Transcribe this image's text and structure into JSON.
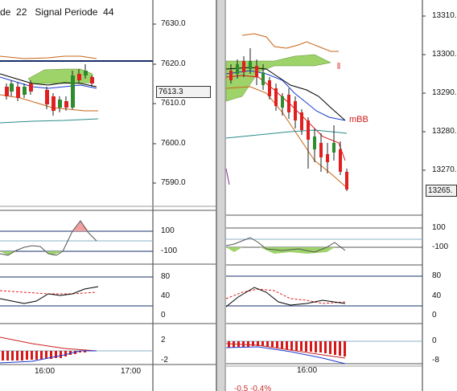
{
  "left_chart": {
    "header": {
      "period_label": "de",
      "period_value": "22",
      "signal_label": "Signal Periode",
      "signal_value": "44"
    },
    "price_axis": [
      "7630.0",
      "7620.0",
      "7610.0",
      "7600.0",
      "7590.0"
    ],
    "current_price": "7613.3",
    "cci_axis": [
      "100",
      "-100"
    ],
    "stoch_axis": [
      "80",
      "40",
      "0"
    ],
    "macd_axis": [
      "2",
      "-2"
    ],
    "time_axis": [
      "16:00",
      "17:00"
    ]
  },
  "right_chart": {
    "price_axis": [
      "13310.",
      "13300.",
      "13290.",
      "13280.",
      "13270."
    ],
    "current_price": "13265.",
    "band_label": "mBB",
    "cci_axis": [
      "100",
      "-100"
    ],
    "stoch_axis": [
      "80",
      "40",
      "0"
    ],
    "macd_axis": [
      "0",
      "-8"
    ],
    "time_axis": [
      "16:00"
    ],
    "footer_text": "-0.5   -0.4%"
  },
  "colors": {
    "background": "#ffffff",
    "bull_candle": "#2e8b2e",
    "bear_candle": "#e02020",
    "ichimoku_cloud": "#9ed36a",
    "band_orange": "#c86414",
    "axis_navy": "#1a2f6b",
    "mbb_label": "#d01818"
  }
}
